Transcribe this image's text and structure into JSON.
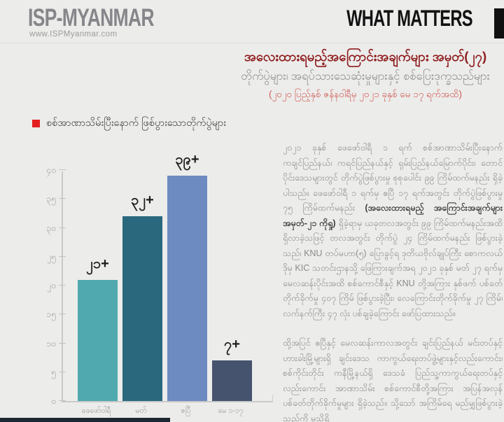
{
  "header": {
    "logo_text": "ISP-MYANMAR",
    "logo_url": "www.ISPMyanmar.com",
    "series_title": "WHAT MATTERS",
    "brand_block_color": "#101010"
  },
  "title_block": {
    "title": "အလေးထားရမည့်အကြောင်းအချက်များ အမှတ်(၂၇)",
    "subtitle": "တိုက်ပွဲများ၊ အရပ်သားသေဆုံးမှုများနှင့် စစ်ပြေးဒုက္ခသည်များ",
    "date_range": "(၂၀၂၀ ပြည့်နှစ် ဇန်နဝါရီမှ ၂၀၂၁ ခုနှစ် မေ ၁၇ ရက်အထိ)",
    "title_color": "#8e1b1b",
    "date_color": "#d05b54"
  },
  "legend": {
    "label": "စစ်အာဏာသိမ်းပြီးနောက် ဖြစ်ပွားသောတိုက်ပွဲများ",
    "square_color": "#e41e1e"
  },
  "chart_data": {
    "type": "bar",
    "title": "စစ်အာဏာသိမ်းပြီးနောက် ဖြစ်ပွားသောတိုက်ပွဲများ",
    "categories": [
      "ဖေဖော်ဝါရီ",
      "မတ်",
      "ဧပြီ",
      "မေ ၁-၁၇"
    ],
    "values": [
      21,
      32,
      39,
      7
    ],
    "value_labels": [
      "၂၁+",
      "၃၂+",
      "၃၉+",
      "၇+"
    ],
    "bar_colors": [
      "#4fa9ae",
      "#29687d",
      "#6d8bc0",
      "#45536e"
    ],
    "ylim": [
      0,
      40
    ],
    "yticks": [
      0,
      5,
      10,
      15,
      20,
      25,
      30,
      35,
      40
    ],
    "ytick_labels": [
      "၀",
      "၅",
      "၁၀",
      "၁၅",
      "၂၀",
      "၂၅",
      "၃၀",
      "၃၅",
      "၄၀"
    ],
    "xlabel": "",
    "ylabel": "",
    "grid": false,
    "legend_position": "top-left"
  },
  "article": {
    "p1_start": "၂၀၂၁ ခုနှစ် ဖေဖော်ဝါရီ ၁ ရက် စစ်အာဏာသိမ်းပြီးနောက် ကချင်ပြည်နယ်၊ ကရင်ပြည်နယ်နှင့် ရှမ်းပြည်နယ်မြောက်ပိုင်း၊ တောင်ပိုင်းဒေသများတွင် တိုက်ပွဲဖြစ်ပွားမှု စုစုပေါင်း ၉၉ ကြိမ်ထက်မနည်း ရှိခဲ့ပါသည်။ ဖေဖော်ဝါရီ ၁ ရက်မှ ဧပြီ ၁၇ ရက်အတွင်း တိုက်ပွဲဖြစ်ပွားမှု ၇၅ ကြိမ်ထက်မနည်း ",
    "p1_bold": "(အလေးထားရမည့် အကြောင်းအချက်များ အမှတ်-၂၁ ကိုရှု)",
    "p1_end": " ရှိခဲ့ရာမှ ယခုတလအတွင်း ၉၉ ကြိမ်ထက်မနည်းအထိ ရှိလာခဲ့သဖြင့် တလအတွင်း တိုက်ပွဲ ၂၄ ကြိမ်ထက်မနည်း ဖြစ်ပွားခဲ့သည်၊ KNU တပ်မဟာ(၅) ပြောခွင့်ရ ဒုတိယဗိုလ်ချုပ်ကြီး စောကလယ်ဒိုမှ KIC သတင်းဌာနသို့ ဖြေကြားချက်အရ ၂၀၂၁ ခုနှစ် မတ် ၂၇ ရက်မှ မေလဆန်းပိုင်းအထိ စစ်ကောင်စီနှင့် KNU တို့အကြား နှစ်ဖက် ပစ်ခတ်တိုက်ခိုက်မှု ၄၀၇ ကြိမ် ဖြစ်ပွားခဲ့ပြီး၊ လေကြောင်းတိုက်ခိုက်မှု ၂၇ ကြိမ်၊ လက်နက်ကြီး ၄၇ လုံး ပစ်ချခဲ့ကြောင်း ဖော်ပြထားသည်။",
    "p2": "ထို့အပြင် ဧပြီနှင့် မေလဆန်းကာလအတွင်း ချင်းပြည်နယ် မင်းတပ်နှင့် ဟားခါးမြို့များရှိ ချင်းဒေသ ကာကွယ်ရေးတပ်ဖွဲ့များနှင့်လည်းကောင်း၊ စစ်ကိုင်းတိုင်း ကနီမြို့နယ်ရှိ ဒေသခံ ပြည်သူ့ကာကွယ်ရေးတပ်နှင့်လည်းကောင်း အာဏာသိမ်း စစ်ကောင်စီတို့အကြား အပြန်အလှန် ပစ်ခတ်တိုက်ခိုက်မှုများ ရှိခဲ့သည်။ သို့သော် အကြိမ်ရေ မည်မျှဖြစ်ပွားခဲ့သည်ကို မသိရှိ"
  },
  "colors": {
    "page_background": "#ececeb",
    "logo_gray": "#86868a",
    "accent_red": "#e41e1e",
    "footer_bar": "#1d2734"
  }
}
